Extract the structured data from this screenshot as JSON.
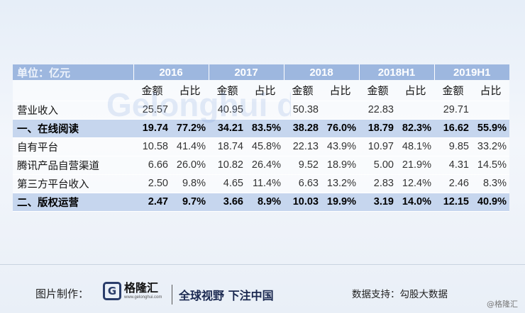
{
  "table": {
    "unit_label": "单位：亿元",
    "years": [
      "2016",
      "2017",
      "2018",
      "2018H1",
      "2019H1"
    ],
    "sub_headers": [
      "金额",
      "占比"
    ],
    "rows": [
      {
        "label": "营业收入",
        "bold": false,
        "cells": [
          "25.57",
          "",
          "40.95",
          "",
          "50.38",
          "",
          "22.83",
          "",
          "29.71",
          ""
        ]
      },
      {
        "label": "一、在线阅读",
        "bold": true,
        "cells": [
          "19.74",
          "77.2%",
          "34.21",
          "83.5%",
          "38.28",
          "76.0%",
          "18.79",
          "82.3%",
          "16.62",
          "55.9%"
        ]
      },
      {
        "label": "自有平台",
        "bold": false,
        "cells": [
          "10.58",
          "41.4%",
          "18.74",
          "45.8%",
          "22.13",
          "43.9%",
          "10.97",
          "48.1%",
          "9.85",
          "33.2%"
        ]
      },
      {
        "label": "腾讯产品自营渠道",
        "bold": false,
        "cells": [
          "6.66",
          "26.0%",
          "10.82",
          "26.4%",
          "9.52",
          "18.9%",
          "5.00",
          "21.9%",
          "4.31",
          "14.5%"
        ]
      },
      {
        "label": "第三方平台收入",
        "bold": false,
        "cells": [
          "2.50",
          "9.8%",
          "4.65",
          "11.4%",
          "6.63",
          "13.2%",
          "2.83",
          "12.4%",
          "2.46",
          "8.3%"
        ]
      },
      {
        "label": "二、版权运营",
        "bold": true,
        "cells": [
          "2.47",
          "9.7%",
          "3.66",
          "8.9%",
          "10.03",
          "19.9%",
          "3.19",
          "14.0%",
          "12.15",
          "40.9%"
        ]
      }
    ]
  },
  "watermark": {
    "text": "Gelonghui data 勾股大数据"
  },
  "footer": {
    "made_by": "图片制作：",
    "logo_letter": "G",
    "logo_name": "格隆汇",
    "logo_url": "www.gelonghui.com",
    "slogan": "全球视野 下注中国",
    "source": "数据支持：勾股大数据",
    "corner_mark": "@格隆汇"
  },
  "colors": {
    "header_bg": "#9db7df",
    "highlight_row": "#c6d6ee",
    "brand_navy": "#2a3d6b"
  }
}
